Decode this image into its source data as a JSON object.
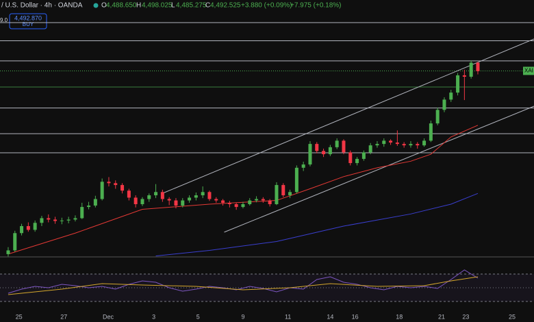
{
  "header": {
    "symbol": "/ U.S. Dollar · 4h · OANDA",
    "o_label": "O",
    "open": "4,488.650",
    "h_label": "H",
    "high": "4,498.025",
    "l_label": "L",
    "low": "4,485.275",
    "c_label": "C",
    "close": "4,492.525",
    "change": "+3.880 (+0.09%)",
    "change2": "+7.975 (+0.18%)"
  },
  "buy_button": {
    "price": "4,492.870",
    "label": "BUY"
  },
  "chart_data": {
    "type": "candlestick",
    "axis_fragment": "9.0",
    "symbol_tag": "XAI",
    "up_color": "#4caf50",
    "down_color": "#f23645",
    "xlim": [
      -1.22,
      78.37
    ],
    "ylim": [
      4094,
      4615
    ],
    "xticks": [
      {
        "value": 1.6,
        "label": "25"
      },
      {
        "value": 8.3,
        "label": "27"
      },
      {
        "value": 14.9,
        "label": "Dec"
      },
      {
        "value": 21.7,
        "label": "3"
      },
      {
        "value": 28.3,
        "label": "5"
      },
      {
        "value": 35,
        "label": "9"
      },
      {
        "value": 41.7,
        "label": "11"
      },
      {
        "value": 48,
        "label": "14"
      },
      {
        "value": 51.7,
        "label": "16"
      },
      {
        "value": 58.3,
        "label": "18"
      },
      {
        "value": 64.6,
        "label": "21"
      },
      {
        "value": 68.2,
        "label": "23"
      },
      {
        "value": 75.1,
        "label": "25"
      }
    ],
    "levels": [
      4596,
      4557,
      4514,
      4413,
      4358,
      4317
    ],
    "level_color": "#b2b5be",
    "price_line": 4492.525,
    "prev_line": 4458,
    "candles": [
      [
        4100,
        4115,
        4095,
        4108
      ],
      [
        4108,
        4150,
        4105,
        4145
      ],
      [
        4145,
        4165,
        4140,
        4160
      ],
      [
        4160,
        4168,
        4148,
        4152
      ],
      [
        4152,
        4172,
        4148,
        4167
      ],
      [
        4167,
        4182,
        4160,
        4177
      ],
      [
        4177,
        4185,
        4168,
        4174
      ],
      [
        4174,
        4180,
        4165,
        4171
      ],
      [
        4171,
        4178,
        4164,
        4172
      ],
      [
        4172,
        4180,
        4166,
        4174
      ],
      [
        4174,
        4183,
        4170,
        4177
      ],
      [
        4177,
        4210,
        4175,
        4201
      ],
      [
        4201,
        4212,
        4196,
        4204
      ],
      [
        4204,
        4225,
        4200,
        4218
      ],
      [
        4218,
        4262,
        4215,
        4255
      ],
      [
        4255,
        4265,
        4245,
        4252
      ],
      [
        4252,
        4258,
        4240,
        4248
      ],
      [
        4248,
        4252,
        4230,
        4236
      ],
      [
        4236,
        4240,
        4215,
        4221
      ],
      [
        4221,
        4226,
        4200,
        4207
      ],
      [
        4207,
        4222,
        4203,
        4218
      ],
      [
        4218,
        4230,
        4212,
        4226
      ],
      [
        4226,
        4250,
        4220,
        4233
      ],
      [
        4233,
        4238,
        4212,
        4218
      ],
      [
        4218,
        4222,
        4205,
        4215
      ],
      [
        4215,
        4220,
        4198,
        4204
      ],
      [
        4204,
        4220,
        4200,
        4215
      ],
      [
        4215,
        4226,
        4210,
        4221
      ],
      [
        4221,
        4232,
        4215,
        4226
      ],
      [
        4226,
        4245,
        4220,
        4233
      ],
      [
        4233,
        4236,
        4214,
        4218
      ],
      [
        4218,
        4222,
        4210,
        4215
      ],
      [
        4215,
        4218,
        4204,
        4210
      ],
      [
        4210,
        4214,
        4200,
        4207
      ],
      [
        4207,
        4210,
        4195,
        4201
      ],
      [
        4201,
        4212,
        4198,
        4207
      ],
      [
        4207,
        4220,
        4204,
        4215
      ],
      [
        4215,
        4224,
        4211,
        4218
      ],
      [
        4218,
        4222,
        4210,
        4215
      ],
      [
        4215,
        4218,
        4202,
        4207
      ],
      [
        4207,
        4254,
        4205,
        4248
      ],
      [
        4248,
        4252,
        4222,
        4226
      ],
      [
        4226,
        4238,
        4220,
        4233
      ],
      [
        4233,
        4290,
        4230,
        4285
      ],
      [
        4285,
        4298,
        4278,
        4292
      ],
      [
        4292,
        4342,
        4288,
        4336
      ],
      [
        4336,
        4340,
        4316,
        4321
      ],
      [
        4321,
        4326,
        4308,
        4314
      ],
      [
        4314,
        4334,
        4310,
        4329
      ],
      [
        4329,
        4348,
        4325,
        4343
      ],
      [
        4343,
        4346,
        4314,
        4318
      ],
      [
        4318,
        4322,
        4290,
        4295
      ],
      [
        4295,
        4308,
        4290,
        4304
      ],
      [
        4304,
        4322,
        4300,
        4318
      ],
      [
        4318,
        4338,
        4314,
        4333
      ],
      [
        4333,
        4342,
        4328,
        4336
      ],
      [
        4336,
        4348,
        4330,
        4343
      ],
      [
        4343,
        4346,
        4334,
        4339
      ],
      [
        4339,
        4365,
        4332,
        4336
      ],
      [
        4336,
        4340,
        4328,
        4333
      ],
      [
        4333,
        4342,
        4328,
        4336
      ],
      [
        4336,
        4340,
        4326,
        4333
      ],
      [
        4333,
        4348,
        4330,
        4343
      ],
      [
        4343,
        4386,
        4340,
        4380
      ],
      [
        4380,
        4414,
        4376,
        4409
      ],
      [
        4409,
        4436,
        4404,
        4431
      ],
      [
        4431,
        4452,
        4426,
        4446
      ],
      [
        4446,
        4488,
        4440,
        4483
      ],
      [
        4483,
        4495,
        4430,
        4480
      ],
      [
        4480,
        4515,
        4476,
        4510
      ],
      [
        4510,
        4512,
        4485,
        4492
      ]
    ],
    "ma": [
      {
        "color": "#e53935",
        "x": [
          0,
          10,
          20,
          30,
          40,
          45,
          50,
          55,
          60,
          63,
          66,
          70
        ],
        "values": [
          4100,
          4145,
          4196,
          4207,
          4215,
          4240,
          4266,
          4285,
          4299,
          4314,
          4351,
          4376
        ]
      },
      {
        "color": "#3a3fd0",
        "x": [
          22,
          30,
          40,
          50,
          60,
          66,
          70
        ],
        "values": [
          4096,
          4108,
          4127,
          4160,
          4186,
          4207,
          4230
        ]
      }
    ],
    "channel": [
      {
        "x": [
          22.8,
          78.4
        ],
        "values": [
          4229,
          4561
        ]
      },
      {
        "x": [
          32.2,
          78.4
        ],
        "values": [
          4147,
          4417
        ]
      }
    ],
    "rsi": {
      "ylim": [
        15,
        93
      ],
      "levels": [
        70,
        50,
        30
      ],
      "series": [
        {
          "color": "#7e57c2",
          "x": [
            0,
            2,
            4,
            6,
            8,
            10,
            12,
            14,
            16,
            18,
            20,
            22,
            24,
            26,
            28,
            30,
            32,
            34,
            36,
            38,
            40,
            42,
            44,
            46,
            48,
            50,
            52,
            54,
            56,
            58,
            60,
            62,
            64,
            66,
            68,
            70
          ],
          "values": [
            42,
            48,
            52,
            50,
            55,
            53,
            50,
            52,
            48,
            55,
            60,
            58,
            50,
            45,
            48,
            52,
            50,
            47,
            52,
            49,
            44,
            50,
            48,
            62,
            66,
            58,
            55,
            50,
            47,
            52,
            50,
            52,
            49,
            62,
            76,
            64
          ]
        },
        {
          "color": "#d4a72c",
          "x": [
            0,
            8,
            14,
            20,
            28,
            35,
            42,
            48,
            55,
            62,
            66,
            70
          ],
          "values": [
            40,
            48,
            56,
            54,
            52,
            47,
            50,
            56,
            52,
            53,
            60,
            66
          ]
        }
      ]
    }
  }
}
